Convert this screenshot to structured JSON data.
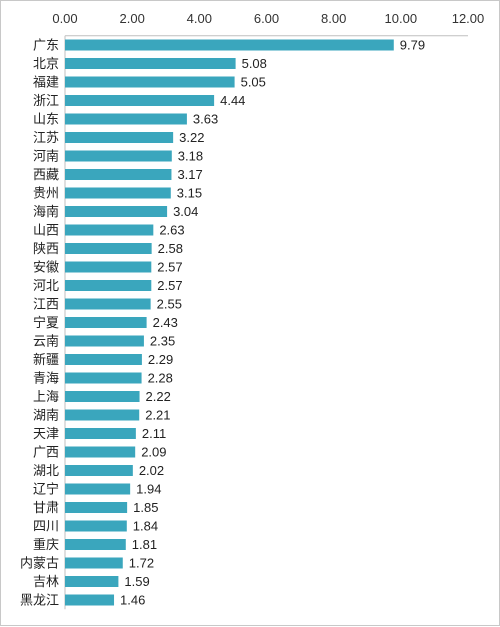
{
  "chart_data": {
    "type": "bar",
    "orientation": "horizontal",
    "xlim": [
      0,
      12
    ],
    "x_ticks": [
      "0.00",
      "2.00",
      "4.00",
      "6.00",
      "8.00",
      "10.00",
      "12.00"
    ],
    "x_axis_position": "top",
    "gridlines": false,
    "legend": "none",
    "bar_color": "#3aa6bd",
    "categories": [
      "广东",
      "北京",
      "福建",
      "浙江",
      "山东",
      "江苏",
      "河南",
      "西藏",
      "贵州",
      "海南",
      "山西",
      "陕西",
      "安徽",
      "河北",
      "江西",
      "宁夏",
      "云南",
      "新疆",
      "青海",
      "上海",
      "湖南",
      "天津",
      "广西",
      "湖北",
      "辽宁",
      "甘肃",
      "四川",
      "重庆",
      "内蒙古",
      "吉林",
      "黑龙江"
    ],
    "values": [
      9.79,
      5.08,
      5.05,
      4.44,
      3.63,
      3.22,
      3.18,
      3.17,
      3.15,
      3.04,
      2.63,
      2.58,
      2.57,
      2.57,
      2.55,
      2.43,
      2.35,
      2.29,
      2.28,
      2.22,
      2.21,
      2.11,
      2.09,
      2.02,
      1.94,
      1.85,
      1.84,
      1.81,
      1.72,
      1.59,
      1.46
    ],
    "value_labels": [
      "9.79",
      "5.08",
      "5.05",
      "4.44",
      "3.63",
      "3.22",
      "3.18",
      "3.17",
      "3.15",
      "3.04",
      "2.63",
      "2.58",
      "2.57",
      "2.57",
      "2.55",
      "2.43",
      "2.35",
      "2.29",
      "2.28",
      "2.22",
      "2.21",
      "2.11",
      "2.09",
      "2.02",
      "1.94",
      "1.85",
      "1.84",
      "1.81",
      "1.72",
      "1.59",
      "1.46"
    ]
  }
}
